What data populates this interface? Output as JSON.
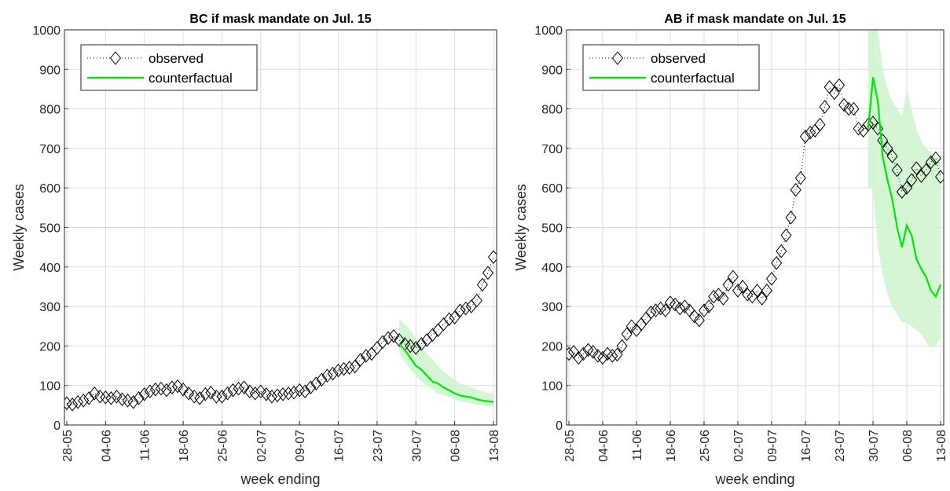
{
  "chart_data": [
    {
      "type": "line",
      "title": "BC if mask mandate on Jul. 15",
      "xlabel": "week ending",
      "ylabel": "Weekly cases",
      "categories": [
        "28-05",
        null,
        null,
        null,
        null,
        null,
        null,
        "04-06",
        null,
        null,
        null,
        null,
        null,
        null,
        "11-06",
        null,
        null,
        null,
        null,
        null,
        null,
        "18-06",
        null,
        null,
        null,
        null,
        null,
        null,
        "25-06",
        null,
        null,
        null,
        null,
        null,
        null,
        "02-07",
        null,
        null,
        null,
        null,
        null,
        null,
        "09-07",
        null,
        null,
        null,
        null,
        null,
        null,
        "16-07",
        null,
        null,
        null,
        null,
        null,
        null,
        "23-07",
        null,
        null,
        null,
        null,
        null,
        null,
        "30-07",
        null,
        null,
        null,
        null,
        null,
        null,
        "06-08",
        null,
        null,
        null,
        null,
        null,
        null,
        "13-08"
      ],
      "ylim": [
        0,
        1000
      ],
      "yticks": [
        0,
        100,
        200,
        300,
        400,
        500,
        600,
        700,
        800,
        900,
        1000
      ],
      "grid": true,
      "legend": "upper left",
      "series": [
        {
          "name": "observed",
          "color": "#000000",
          "values": [
            55,
            52,
            58,
            62,
            68,
            80,
            72,
            70,
            68,
            72,
            65,
            62,
            58,
            68,
            78,
            85,
            90,
            92,
            88,
            95,
            98,
            90,
            80,
            72,
            68,
            78,
            82,
            72,
            72,
            80,
            88,
            92,
            95,
            85,
            80,
            85,
            78,
            72,
            75,
            78,
            80,
            82,
            88,
            85,
            95,
            105,
            115,
            125,
            130,
            138,
            142,
            145,
            148,
            165,
            175,
            180,
            195,
            210,
            220,
            225,
            215,
            205,
            200,
            195,
            205,
            215,
            228,
            240,
            255,
            268,
            272,
            290,
            295,
            300,
            315,
            355,
            385,
            425
          ]
        },
        {
          "name": "counterfactual",
          "color": "#00e600",
          "band_color": "#ccf5cc",
          "values": [
            null,
            null,
            null,
            null,
            null,
            null,
            null,
            null,
            null,
            null,
            null,
            null,
            null,
            null,
            null,
            null,
            null,
            null,
            null,
            null,
            null,
            null,
            null,
            null,
            null,
            null,
            null,
            null,
            null,
            null,
            null,
            null,
            null,
            null,
            null,
            null,
            null,
            null,
            null,
            null,
            null,
            null,
            null,
            null,
            null,
            null,
            null,
            null,
            null,
            null,
            null,
            null,
            null,
            null,
            null,
            null,
            null,
            null,
            null,
            null,
            205,
            190,
            170,
            150,
            140,
            125,
            110,
            105,
            95,
            88,
            80,
            75,
            72,
            70,
            65,
            62,
            60,
            58
          ],
          "upper": [
            null,
            null,
            null,
            null,
            null,
            null,
            null,
            null,
            null,
            null,
            null,
            null,
            null,
            null,
            null,
            null,
            null,
            null,
            null,
            null,
            null,
            null,
            null,
            null,
            null,
            null,
            null,
            null,
            null,
            null,
            null,
            null,
            null,
            null,
            null,
            null,
            null,
            null,
            null,
            null,
            null,
            null,
            null,
            null,
            null,
            null,
            null,
            null,
            null,
            null,
            null,
            null,
            null,
            null,
            null,
            null,
            null,
            null,
            null,
            null,
            270,
            255,
            240,
            220,
            200,
            180,
            165,
            150,
            135,
            125,
            115,
            105,
            100,
            95,
            90,
            85,
            82,
            80
          ],
          "lower": [
            null,
            null,
            null,
            null,
            null,
            null,
            null,
            null,
            null,
            null,
            null,
            null,
            null,
            null,
            null,
            null,
            null,
            null,
            null,
            null,
            null,
            null,
            null,
            null,
            null,
            null,
            null,
            null,
            null,
            null,
            null,
            null,
            null,
            null,
            null,
            null,
            null,
            null,
            null,
            null,
            null,
            null,
            null,
            null,
            null,
            null,
            null,
            null,
            null,
            null,
            null,
            null,
            null,
            null,
            null,
            null,
            null,
            null,
            null,
            null,
            180,
            160,
            140,
            125,
            110,
            100,
            90,
            80,
            75,
            70,
            65,
            60,
            58,
            55,
            52,
            50,
            48,
            47
          ]
        }
      ]
    },
    {
      "type": "line",
      "title": "AB if mask mandate on Jul. 15",
      "xlabel": "week ending",
      "ylabel": "Weekly cases",
      "categories": [
        "28-05",
        null,
        null,
        null,
        null,
        null,
        null,
        "04-06",
        null,
        null,
        null,
        null,
        null,
        null,
        "11-06",
        null,
        null,
        null,
        null,
        null,
        null,
        "18-06",
        null,
        null,
        null,
        null,
        null,
        null,
        "25-06",
        null,
        null,
        null,
        null,
        null,
        null,
        "02-07",
        null,
        null,
        null,
        null,
        null,
        null,
        "09-07",
        null,
        null,
        null,
        null,
        null,
        null,
        "16-07",
        null,
        null,
        null,
        null,
        null,
        null,
        "23-07",
        null,
        null,
        null,
        null,
        null,
        null,
        "30-07",
        null,
        null,
        null,
        null,
        null,
        null,
        "06-08",
        null,
        null,
        null,
        null,
        null,
        null,
        "13-08"
      ],
      "ylim": [
        0,
        1000
      ],
      "yticks": [
        0,
        100,
        200,
        300,
        400,
        500,
        600,
        700,
        800,
        900,
        1000
      ],
      "grid": true,
      "legend": "upper left",
      "series": [
        {
          "name": "observed",
          "color": "#000000",
          "values": [
            180,
            185,
            170,
            180,
            190,
            185,
            175,
            170,
            180,
            175,
            178,
            200,
            230,
            250,
            240,
            255,
            270,
            285,
            290,
            295,
            290,
            310,
            305,
            295,
            300,
            290,
            275,
            265,
            290,
            300,
            325,
            330,
            320,
            355,
            375,
            340,
            350,
            330,
            325,
            340,
            320,
            340,
            370,
            410,
            440,
            480,
            525,
            595,
            625,
            730,
            740,
            745,
            760,
            805,
            855,
            840,
            860,
            810,
            800,
            800,
            750,
            745,
            760,
            765,
            750,
            720,
            700,
            680,
            645,
            590,
            600,
            620,
            650,
            630,
            645,
            665,
            675,
            628
          ]
        },
        {
          "name": "counterfactual",
          "color": "#00e600",
          "band_color": "#ccf5cc",
          "values": [
            null,
            null,
            null,
            null,
            null,
            null,
            null,
            null,
            null,
            null,
            null,
            null,
            null,
            null,
            null,
            null,
            null,
            null,
            null,
            null,
            null,
            null,
            null,
            null,
            null,
            null,
            null,
            null,
            null,
            null,
            null,
            null,
            null,
            null,
            null,
            null,
            null,
            null,
            null,
            null,
            null,
            null,
            null,
            null,
            null,
            null,
            null,
            null,
            null,
            null,
            null,
            null,
            null,
            null,
            null,
            null,
            null,
            null,
            null,
            null,
            null,
            null,
            750,
            880,
            820,
            680,
            620,
            570,
            500,
            450,
            505,
            480,
            420,
            395,
            375,
            340,
            325,
            355
          ],
          "upper": [
            null,
            null,
            null,
            null,
            null,
            null,
            null,
            null,
            null,
            null,
            null,
            null,
            null,
            null,
            null,
            null,
            null,
            null,
            null,
            null,
            null,
            null,
            null,
            null,
            null,
            null,
            null,
            null,
            null,
            null,
            null,
            null,
            null,
            null,
            null,
            null,
            null,
            null,
            null,
            null,
            null,
            null,
            null,
            null,
            null,
            null,
            null,
            null,
            null,
            null,
            null,
            null,
            null,
            null,
            null,
            null,
            null,
            null,
            null,
            null,
            null,
            null,
            1000,
            1100,
            1000,
            900,
            850,
            820,
            800,
            780,
            850,
            800,
            750,
            720,
            700,
            690,
            680,
            680
          ],
          "lower": [
            null,
            null,
            null,
            null,
            null,
            null,
            null,
            null,
            null,
            null,
            null,
            null,
            null,
            null,
            null,
            null,
            null,
            null,
            null,
            null,
            null,
            null,
            null,
            null,
            null,
            null,
            null,
            null,
            null,
            null,
            null,
            null,
            null,
            null,
            null,
            null,
            null,
            null,
            null,
            null,
            null,
            null,
            null,
            null,
            null,
            null,
            null,
            null,
            null,
            null,
            null,
            null,
            null,
            null,
            null,
            null,
            null,
            null,
            null,
            null,
            null,
            null,
            600,
            600,
            450,
            380,
            330,
            300,
            280,
            260,
            260,
            250,
            240,
            230,
            210,
            195,
            200,
            220
          ]
        }
      ]
    }
  ]
}
